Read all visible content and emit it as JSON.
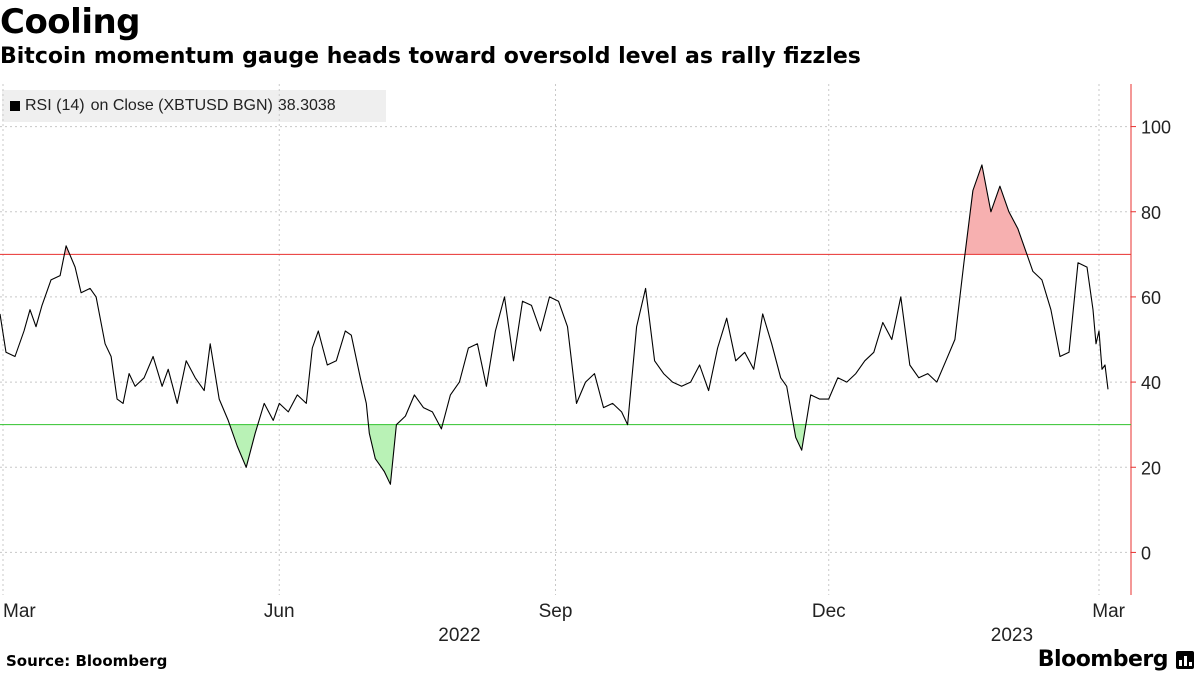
{
  "header": {
    "title": "Cooling",
    "subtitle": "Bitcoin momentum gauge heads toward oversold level as rally fizzles"
  },
  "legend": {
    "series_label": "RSI (14)",
    "series_desc": "on Close (XBTUSD BGN)",
    "last_value": "38.3038"
  },
  "footer": {
    "source": "Source: Bloomberg",
    "brand": "Bloomberg"
  },
  "colors": {
    "line": "#000000",
    "overbought": "#e8312f",
    "oversold": "#31c22d",
    "overbought_fill": "#f7b0b0",
    "oversold_fill": "#b9f2b6",
    "grid": "#c8c8c8",
    "axis": "#e8312f"
  },
  "chart_data": {
    "type": "line",
    "title": "Cooling",
    "subtitle": "Bitcoin momentum gauge heads toward oversold level as rally fizzles",
    "series": [
      {
        "name": "RSI (14) on Close (XBTUSD BGN)",
        "last": 38.3038
      }
    ],
    "x_start": "2022-02-28",
    "x_end": "2023-03-04",
    "x_ticks": [
      {
        "date": "2022-03-01",
        "label": "Mar"
      },
      {
        "date": "2022-06-01",
        "label": "Jun"
      },
      {
        "date": "2022-09-01",
        "label": "Sep"
      },
      {
        "date": "2022-12-01",
        "label": "Dec"
      },
      {
        "date": "2023-03-01",
        "label": "Mar"
      }
    ],
    "x_year_labels": [
      {
        "date": "2022-07-31",
        "label": "2022"
      },
      {
        "date": "2023-01-31",
        "label": "2023"
      }
    ],
    "ylim": [
      -10,
      110
    ],
    "yticks": [
      0,
      20,
      40,
      60,
      80,
      100
    ],
    "thresholds": {
      "overbought": 70,
      "oversold": 30
    },
    "grid": true,
    "y_axis_side": "right",
    "points": [
      [
        "2022-02-28",
        56
      ],
      [
        "2022-03-02",
        47
      ],
      [
        "2022-03-05",
        46
      ],
      [
        "2022-03-08",
        52
      ],
      [
        "2022-03-10",
        57
      ],
      [
        "2022-03-12",
        53
      ],
      [
        "2022-03-14",
        58
      ],
      [
        "2022-03-17",
        64
      ],
      [
        "2022-03-20",
        65
      ],
      [
        "2022-03-22",
        72
      ],
      [
        "2022-03-25",
        67
      ],
      [
        "2022-03-27",
        61
      ],
      [
        "2022-03-30",
        62
      ],
      [
        "2022-04-01",
        60
      ],
      [
        "2022-04-04",
        49
      ],
      [
        "2022-04-06",
        46
      ],
      [
        "2022-04-08",
        36
      ],
      [
        "2022-04-10",
        35
      ],
      [
        "2022-04-12",
        42
      ],
      [
        "2022-04-14",
        39
      ],
      [
        "2022-04-17",
        41
      ],
      [
        "2022-04-20",
        46
      ],
      [
        "2022-04-23",
        39
      ],
      [
        "2022-04-25",
        43
      ],
      [
        "2022-04-28",
        35
      ],
      [
        "2022-05-01",
        45
      ],
      [
        "2022-05-04",
        41
      ],
      [
        "2022-05-07",
        38
      ],
      [
        "2022-05-09",
        49
      ],
      [
        "2022-05-12",
        36
      ],
      [
        "2022-05-15",
        31
      ],
      [
        "2022-05-18",
        25
      ],
      [
        "2022-05-21",
        20
      ],
      [
        "2022-05-24",
        28
      ],
      [
        "2022-05-27",
        35
      ],
      [
        "2022-05-30",
        31
      ],
      [
        "2022-06-01",
        35
      ],
      [
        "2022-06-04",
        33
      ],
      [
        "2022-06-07",
        37
      ],
      [
        "2022-06-10",
        35
      ],
      [
        "2022-06-12",
        48
      ],
      [
        "2022-06-14",
        52
      ],
      [
        "2022-06-17",
        44
      ],
      [
        "2022-06-20",
        45
      ],
      [
        "2022-06-23",
        52
      ],
      [
        "2022-06-25",
        51
      ],
      [
        "2022-06-28",
        41
      ],
      [
        "2022-06-30",
        35
      ],
      [
        "2022-07-01",
        28
      ],
      [
        "2022-07-03",
        22
      ],
      [
        "2022-07-06",
        19
      ],
      [
        "2022-07-08",
        16
      ],
      [
        "2022-07-10",
        30
      ],
      [
        "2022-07-13",
        32
      ],
      [
        "2022-07-16",
        37
      ],
      [
        "2022-07-19",
        34
      ],
      [
        "2022-07-22",
        33
      ],
      [
        "2022-07-25",
        29
      ],
      [
        "2022-07-28",
        37
      ],
      [
        "2022-07-31",
        40
      ],
      [
        "2022-08-03",
        48
      ],
      [
        "2022-08-06",
        49
      ],
      [
        "2022-08-09",
        39
      ],
      [
        "2022-08-12",
        52
      ],
      [
        "2022-08-15",
        60
      ],
      [
        "2022-08-18",
        45
      ],
      [
        "2022-08-21",
        59
      ],
      [
        "2022-08-24",
        58
      ],
      [
        "2022-08-27",
        52
      ],
      [
        "2022-08-30",
        60
      ],
      [
        "2022-09-02",
        59
      ],
      [
        "2022-09-05",
        53
      ],
      [
        "2022-09-08",
        35
      ],
      [
        "2022-09-11",
        40
      ],
      [
        "2022-09-14",
        42
      ],
      [
        "2022-09-17",
        34
      ],
      [
        "2022-09-20",
        35
      ],
      [
        "2022-09-23",
        33
      ],
      [
        "2022-09-25",
        30
      ],
      [
        "2022-09-28",
        53
      ],
      [
        "2022-10-01",
        62
      ],
      [
        "2022-10-04",
        45
      ],
      [
        "2022-10-07",
        42
      ],
      [
        "2022-10-10",
        40
      ],
      [
        "2022-10-13",
        39
      ],
      [
        "2022-10-16",
        40
      ],
      [
        "2022-10-19",
        44
      ],
      [
        "2022-10-22",
        38
      ],
      [
        "2022-10-25",
        48
      ],
      [
        "2022-10-28",
        55
      ],
      [
        "2022-10-31",
        45
      ],
      [
        "2022-11-03",
        47
      ],
      [
        "2022-11-06",
        43
      ],
      [
        "2022-11-09",
        56
      ],
      [
        "2022-11-12",
        49
      ],
      [
        "2022-11-15",
        41
      ],
      [
        "2022-11-17",
        39
      ],
      [
        "2022-11-20",
        27
      ],
      [
        "2022-11-22",
        24
      ],
      [
        "2022-11-25",
        37
      ],
      [
        "2022-11-28",
        36
      ],
      [
        "2022-12-01",
        36
      ],
      [
        "2022-12-04",
        41
      ],
      [
        "2022-12-07",
        40
      ],
      [
        "2022-12-10",
        42
      ],
      [
        "2022-12-13",
        45
      ],
      [
        "2022-12-16",
        47
      ],
      [
        "2022-12-19",
        54
      ],
      [
        "2022-12-22",
        50
      ],
      [
        "2022-12-25",
        60
      ],
      [
        "2022-12-28",
        44
      ],
      [
        "2022-12-31",
        41
      ],
      [
        "2023-01-03",
        42
      ],
      [
        "2023-01-06",
        40
      ],
      [
        "2023-01-09",
        45
      ],
      [
        "2023-01-12",
        50
      ],
      [
        "2023-01-15",
        68
      ],
      [
        "2023-01-18",
        85
      ],
      [
        "2023-01-21",
        91
      ],
      [
        "2023-01-24",
        80
      ],
      [
        "2023-01-27",
        86
      ],
      [
        "2023-01-30",
        80
      ],
      [
        "2023-02-02",
        76
      ],
      [
        "2023-02-04",
        72
      ],
      [
        "2023-02-07",
        66
      ],
      [
        "2023-02-10",
        64
      ],
      [
        "2023-02-13",
        57
      ],
      [
        "2023-02-16",
        46
      ],
      [
        "2023-02-19",
        47
      ],
      [
        "2023-02-22",
        68
      ],
      [
        "2023-02-25",
        67
      ],
      [
        "2023-02-27",
        57
      ],
      [
        "2023-02-28",
        49
      ],
      [
        "2023-03-01",
        52
      ],
      [
        "2023-03-02",
        43
      ],
      [
        "2023-03-03",
        44
      ],
      [
        "2023-03-04",
        38.3038
      ]
    ]
  }
}
